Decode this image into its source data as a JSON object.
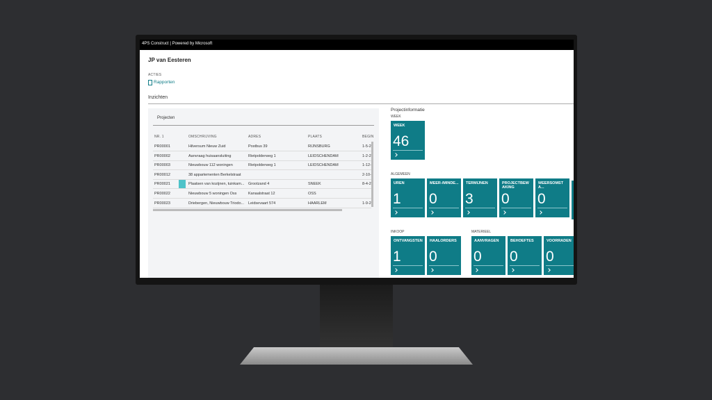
{
  "window_title": "4PS Construct | Powered by Microsoft",
  "header": {
    "title": "JP van Eesteren",
    "actions_label": "ACTIES",
    "action": "Rapporten"
  },
  "section": "Inzichten",
  "list": {
    "title": "Projecten",
    "columns": [
      "NR. 1",
      "OMSCHRIJVING",
      "ADRES",
      "PLAATS",
      "BEGIN"
    ],
    "rows": [
      [
        "PR00001",
        "Hilversum Nieuw Zuid",
        "Postbus 39",
        "RIJNSBURG",
        "1-5-2"
      ],
      [
        "PR00002",
        "Aanvraag huisaansluiting",
        "Rietpolderweg 1",
        "LEIDSCHENDAM",
        "1-2-2"
      ],
      [
        "PR00003",
        "Nieuwbouw 112 woningen",
        "Rietpolderweg 1",
        "LEIDSCHENDAM",
        "1-12-"
      ],
      [
        "PR00012",
        "38 appartementen Berkelstraat",
        "",
        "",
        "2-10-"
      ],
      [
        "PR00021",
        "Plaatsen van kozijnen, tuinkam...",
        "Grootzand 4",
        "SNEEK",
        "8-4-2"
      ],
      [
        "PR00022",
        "Nieuwbouw 5 woningen Oss",
        "Kanaalstraat 12",
        "OSS",
        ""
      ],
      [
        "PR00023",
        "Driebergen, Nieuwbouw Triodo...",
        "Leidsevaart 574",
        "HAARLEM",
        "1-9-2"
      ]
    ]
  },
  "cues": {
    "title": "Projectinformatie",
    "groups": [
      {
        "name": "WEEK",
        "tiles": [
          {
            "label": "WEEK",
            "value": 46
          }
        ]
      },
      {
        "name": "ALGEMEEN",
        "tiles": [
          {
            "label": "UREN",
            "value": 1
          },
          {
            "label": "MEER-/MINDE...",
            "value": 0
          },
          {
            "label": "TERMIJNEN",
            "value": 3
          },
          {
            "label": "PROJECTBEWAKING",
            "value": 0
          },
          {
            "label": "WEERSOMSTA...",
            "value": 0
          }
        ]
      },
      {
        "name": "INKOOP",
        "tiles": [
          {
            "label": "ONTVANGSTEN",
            "value": 1
          },
          {
            "label": "HAALORDERS",
            "value": 0
          }
        ]
      },
      {
        "name": "MATERIEEL",
        "tiles": [
          {
            "label": "AANVRAGEN",
            "value": 0
          },
          {
            "label": "BEHOEFTES",
            "value": 0
          },
          {
            "label": "VOORRADEN",
            "value": 0
          }
        ]
      }
    ]
  }
}
